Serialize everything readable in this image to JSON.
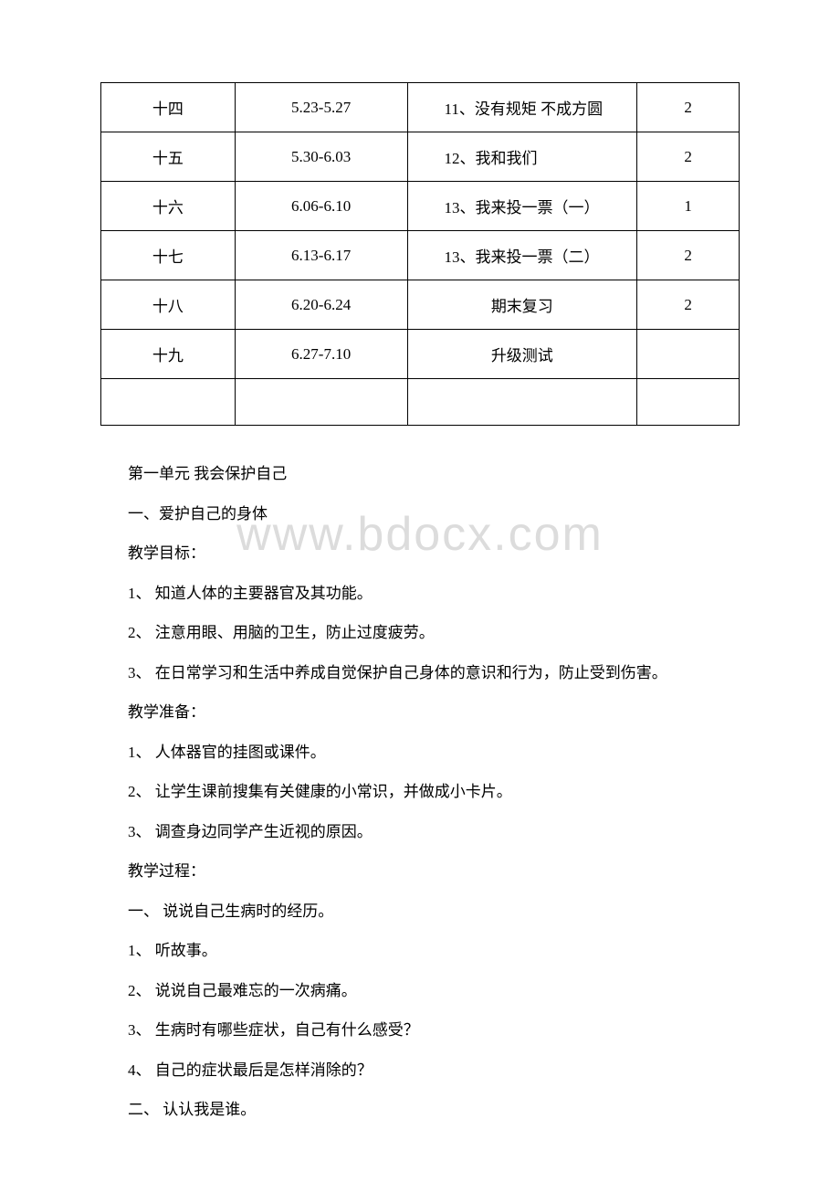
{
  "watermark": "www.bdocx.com",
  "table": {
    "rows": [
      {
        "c1": "十四",
        "c2": "5.23-5.27",
        "c3": "11、没有规矩 不成方圆",
        "c4": "2",
        "c3center": false
      },
      {
        "c1": "十五",
        "c2": "5.30-6.03",
        "c3": "12、我和我们",
        "c4": "2",
        "c3center": false
      },
      {
        "c1": "十六",
        "c2": "6.06-6.10",
        "c3": "13、我来投一票（一）",
        "c4": "1",
        "c3center": false
      },
      {
        "c1": "十七",
        "c2": "6.13-6.17",
        "c3": "13、我来投一票（二）",
        "c4": "2",
        "c3center": false
      },
      {
        "c1": "十八",
        "c2": "6.20-6.24",
        "c3": "期末复习",
        "c4": "2",
        "c3center": true
      },
      {
        "c1": "十九",
        "c2": "6.27-7.10",
        "c3": "升级测试",
        "c4": "",
        "c3center": true
      }
    ]
  },
  "lines": [
    "第一单元 我会保护自己",
    "一、爱护自己的身体",
    "教学目标：",
    "1、 知道人体的主要器官及其功能。",
    "2、 注意用眼、用脑的卫生，防止过度疲劳。",
    "3、 在日常学习和生活中养成自觉保护自己身体的意识和行为，防止受到伤害。",
    "教学准备：",
    "1、 人体器官的挂图或课件。",
    "2、 让学生课前搜集有关健康的小常识，并做成小卡片。",
    "3、 调查身边同学产生近视的原因。",
    "教学过程：",
    "一、 说说自己生病时的经历。",
    "1、 听故事。",
    "2、 说说自己最难忘的一次病痛。",
    "3、 生病时有哪些症状，自己有什么感受？",
    "4、 自己的症状最后是怎样消除的？",
    "二、 认认我是谁。"
  ]
}
